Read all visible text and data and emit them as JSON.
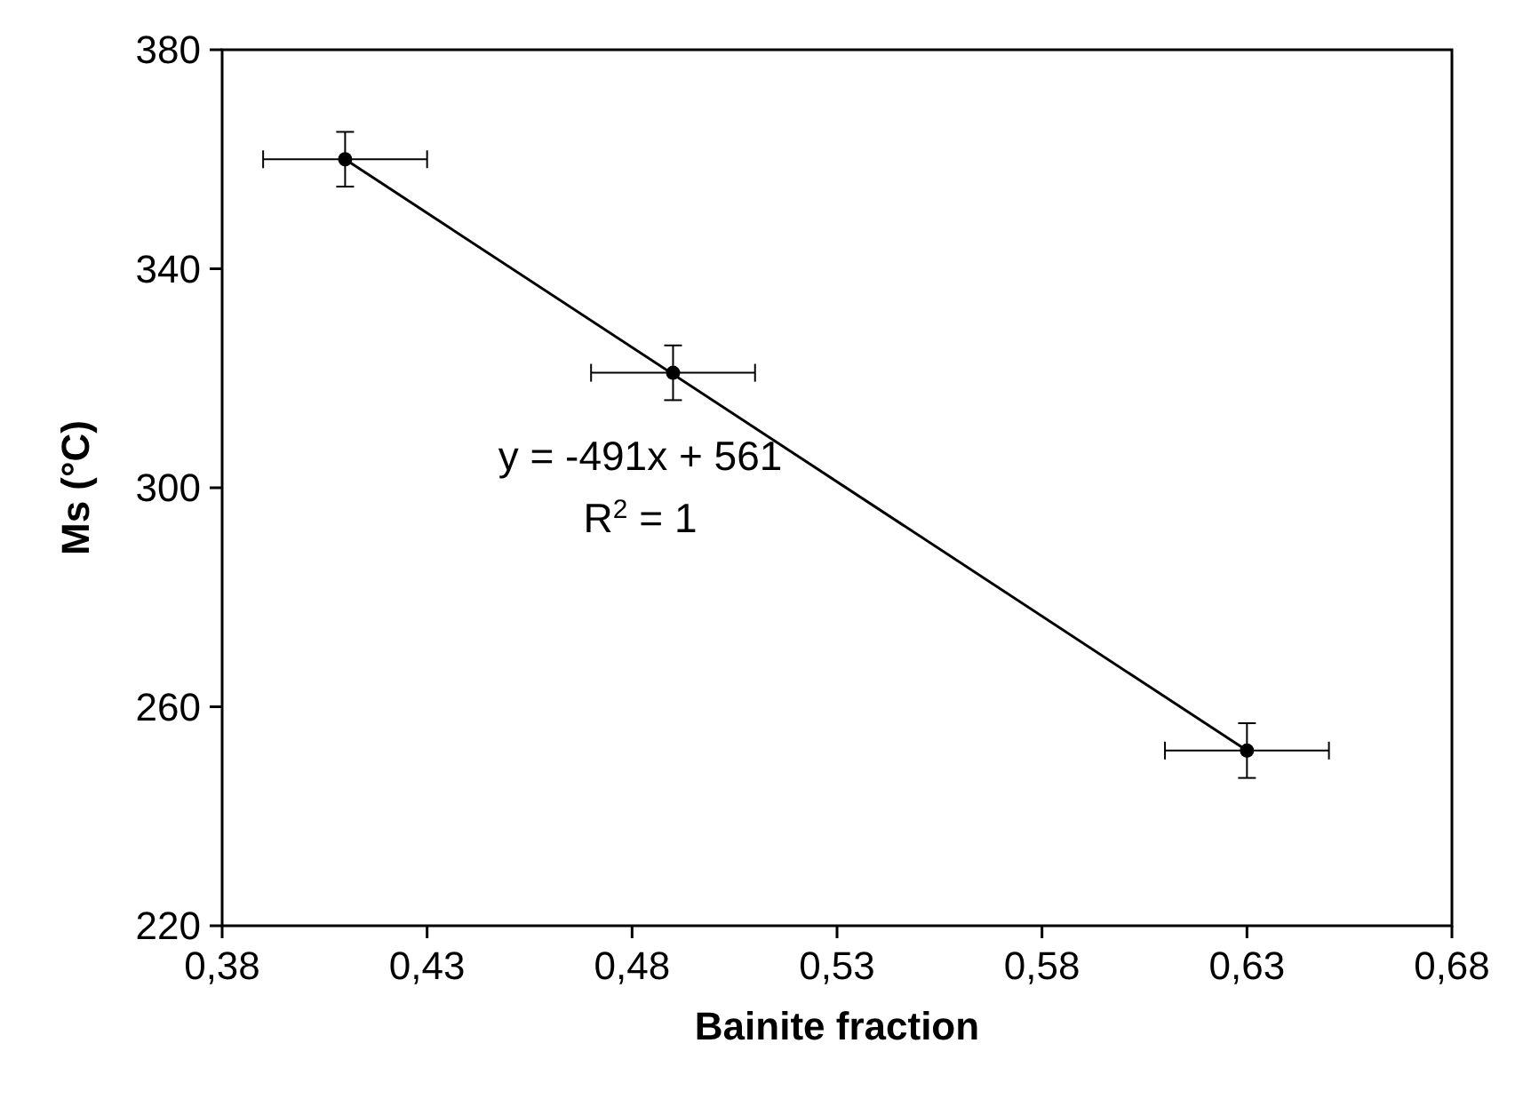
{
  "chart_data": {
    "type": "scatter",
    "xlabel": "Bainite fraction",
    "ylabel": "Ms (°C)",
    "xlim": [
      0.38,
      0.68
    ],
    "ylim": [
      220,
      380
    ],
    "xticks": [
      {
        "value": 0.38,
        "label": "0,38"
      },
      {
        "value": 0.43,
        "label": "0,43"
      },
      {
        "value": 0.48,
        "label": "0,48"
      },
      {
        "value": 0.53,
        "label": "0,53"
      },
      {
        "value": 0.58,
        "label": "0,58"
      },
      {
        "value": 0.63,
        "label": "0,63"
      },
      {
        "value": 0.68,
        "label": "0,68"
      }
    ],
    "yticks": [
      220,
      260,
      300,
      340,
      380
    ],
    "grid": false,
    "series": [
      {
        "color": "#000000",
        "marker": "circle",
        "x": [
          0.41,
          0.49,
          0.63
        ],
        "values": [
          360,
          321,
          252
        ],
        "errors": [
          5,
          5,
          5
        ],
        "xerrors": [
          0.02,
          0.02,
          0.02
        ]
      },
      {
        "type": "line",
        "color": "#000000",
        "marker": "none",
        "line_style": "solid",
        "x": [
          0.41,
          0.63
        ],
        "values": [
          360,
          252
        ]
      }
    ],
    "annotations": [
      "y = -491x + 561",
      "R$^{2}$ = 1"
    ]
  }
}
